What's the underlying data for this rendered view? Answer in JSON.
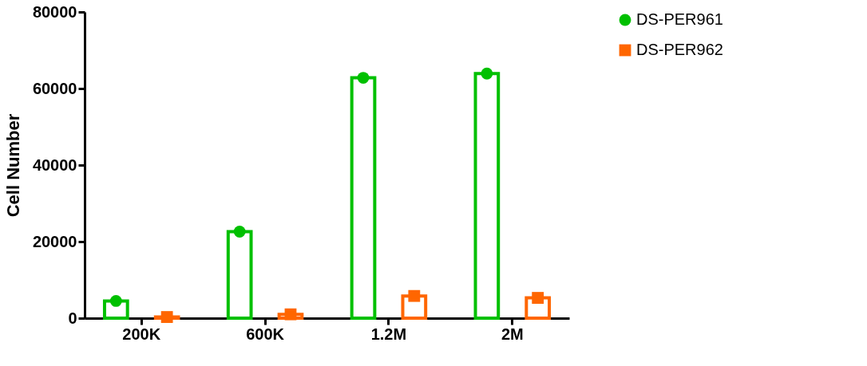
{
  "chart_data": {
    "type": "bar",
    "ylabel": "Cell Number",
    "categories": [
      "200K",
      "600K",
      "1.2M",
      "2M"
    ],
    "ylim": [
      0,
      80000
    ],
    "yticks": [
      0,
      20000,
      40000,
      60000,
      80000
    ],
    "grid": false,
    "legend": "top right",
    "series": [
      {
        "color": "#00c000",
        "values": [
          4500,
          22600,
          62800,
          63900
        ]
      },
      {
        "color": "#ff6600",
        "values": [
          300,
          1000,
          5800,
          5300
        ]
      },
      {
        "type": "scatter",
        "name": "DS-PER961",
        "color": "#00c000",
        "marker": "circle",
        "x": [
          "200K",
          "600K",
          "1.2M",
          "2M"
        ],
        "values": [
          4500,
          22600,
          62800,
          63900
        ]
      },
      {
        "type": "scatter",
        "name": "DS-PER962",
        "color": "#ff6600",
        "marker": "square",
        "x": [
          "200K",
          "600K",
          "1.2M",
          "2M"
        ],
        "values": [
          300,
          1000,
          5800,
          5300
        ]
      }
    ]
  }
}
